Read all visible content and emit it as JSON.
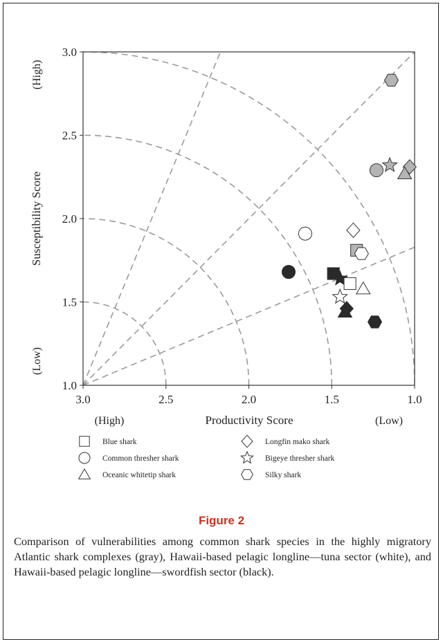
{
  "chart_data": {
    "type": "scatter",
    "xlabel": "Productivity Score",
    "ylabel": "Susceptibility Score",
    "x_label_low_end": "(High)",
    "x_label_high_end": "(Low)",
    "y_label_low_end": "(Low)",
    "y_label_high_end": "(High)",
    "xlim": [
      3.0,
      1.0
    ],
    "ylim": [
      1.0,
      3.0
    ],
    "x_reversed": true,
    "x_ticks": [
      "3.0",
      "2.5",
      "2.0",
      "1.5",
      "1.0"
    ],
    "y_ticks": [
      "1.0",
      "1.5",
      "2.0",
      "2.5",
      "3.0"
    ],
    "guides": {
      "arcs_radius": [
        0.5,
        1.0,
        1.5,
        2.0
      ],
      "ray_angles_deg": [
        22.5,
        45,
        67.5
      ],
      "origin": [
        3.0,
        1.0
      ],
      "style": "dashed gray"
    },
    "legend": [
      {
        "symbol": "square",
        "label": "Blue shark"
      },
      {
        "symbol": "circle",
        "label": "Common thresher shark"
      },
      {
        "symbol": "triangle",
        "label": "Oceanic whitetip shark"
      },
      {
        "symbol": "diamond",
        "label": "Longfin mako shark"
      },
      {
        "symbol": "star",
        "label": "Bigeye thresher shark"
      },
      {
        "symbol": "hexagon",
        "label": "Silky shark"
      }
    ],
    "points": [
      {
        "species": "Silky shark",
        "symbol": "hexagon",
        "fill": "gray",
        "x": 1.14,
        "y": 2.83
      },
      {
        "species": "Common thresher shark",
        "symbol": "circle",
        "fill": "gray",
        "x": 1.23,
        "y": 2.29
      },
      {
        "species": "Bigeye thresher shark",
        "symbol": "star",
        "fill": "gray",
        "x": 1.15,
        "y": 2.32
      },
      {
        "species": "Longfin mako shark",
        "symbol": "diamond",
        "fill": "gray",
        "x": 1.03,
        "y": 2.31
      },
      {
        "species": "Oceanic whitetip shark",
        "symbol": "triangle",
        "fill": "gray",
        "x": 1.06,
        "y": 2.27
      },
      {
        "species": "Common thresher shark",
        "symbol": "circle",
        "fill": "white",
        "x": 1.66,
        "y": 1.91
      },
      {
        "species": "Longfin mako shark",
        "symbol": "diamond",
        "fill": "white",
        "x": 1.37,
        "y": 1.93
      },
      {
        "species": "Blue shark",
        "symbol": "square",
        "fill": "gray",
        "x": 1.35,
        "y": 1.81
      },
      {
        "species": "Silky shark",
        "symbol": "hexagon",
        "fill": "white",
        "x": 1.32,
        "y": 1.79
      },
      {
        "species": "Common thresher shark",
        "symbol": "circle",
        "fill": "black",
        "x": 1.76,
        "y": 1.68
      },
      {
        "species": "Blue shark",
        "symbol": "square",
        "fill": "black",
        "x": 1.49,
        "y": 1.67
      },
      {
        "species": "Bigeye thresher shark",
        "symbol": "star",
        "fill": "black",
        "x": 1.45,
        "y": 1.64
      },
      {
        "species": "Blue shark",
        "symbol": "square",
        "fill": "white",
        "x": 1.39,
        "y": 1.61
      },
      {
        "species": "Oceanic whitetip shark",
        "symbol": "triangle",
        "fill": "white",
        "x": 1.31,
        "y": 1.58
      },
      {
        "species": "Bigeye thresher shark",
        "symbol": "star",
        "fill": "white",
        "x": 1.45,
        "y": 1.53
      },
      {
        "species": "Longfin mako shark",
        "symbol": "diamond",
        "fill": "black",
        "x": 1.41,
        "y": 1.46
      },
      {
        "species": "Oceanic whitetip shark",
        "symbol": "triangle",
        "fill": "black",
        "x": 1.42,
        "y": 1.44
      },
      {
        "species": "Silky shark",
        "symbol": "hexagon",
        "fill": "black",
        "x": 1.24,
        "y": 1.38
      }
    ]
  },
  "colors": {
    "gray": "#b4b4b4",
    "white": "#ffffff",
    "black": "#2a2a2a",
    "stroke": "#333333",
    "guide": "#9a9a9a",
    "title": "#c8341f"
  },
  "figure": {
    "title": "Figure 2",
    "caption": "Comparison of vulnerabilities among common shark species in the highly migratory Atlantic shark complexes (gray), Hawaii-based pelagic longline—tuna sector (white), and Hawaii-based pelagic longline—swordfish sector (black)."
  }
}
